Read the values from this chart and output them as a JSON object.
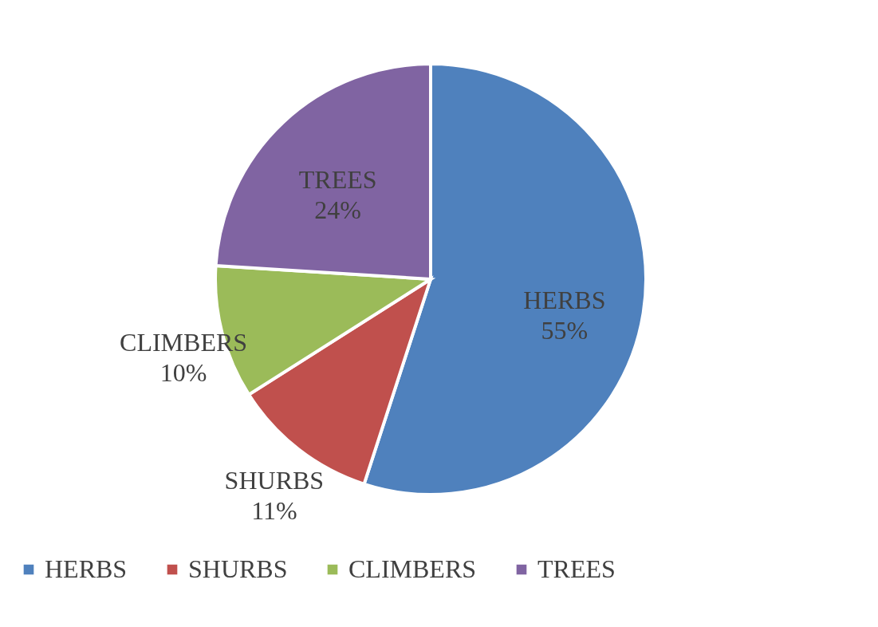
{
  "chart_data": {
    "type": "pie",
    "categories": [
      "HERBS",
      "SHURBS",
      "CLIMBERS",
      "TREES"
    ],
    "values": [
      55,
      11,
      10,
      24
    ],
    "value_labels": [
      "55%",
      "11%",
      "10%",
      "24%"
    ],
    "colors": [
      "#4f81bd",
      "#c0504d",
      "#9bbb59",
      "#8064a2"
    ],
    "legend": "bottom"
  }
}
